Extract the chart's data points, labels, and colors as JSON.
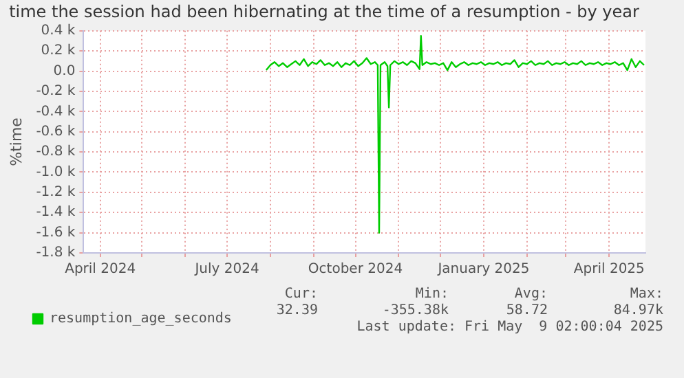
{
  "chart_data": {
    "type": "line",
    "title": "time the session had been hibernating at the time of a resumption - by year",
    "ylabel": "%time",
    "x": [
      "2024-07-29",
      "2024-08-01",
      "2024-08-04",
      "2024-08-07",
      "2024-08-10",
      "2024-08-13",
      "2024-08-16",
      "2024-08-19",
      "2024-08-22",
      "2024-08-25",
      "2024-08-28",
      "2024-08-31",
      "2024-09-03",
      "2024-09-06",
      "2024-09-09",
      "2024-09-12",
      "2024-09-15",
      "2024-09-18",
      "2024-09-21",
      "2024-09-24",
      "2024-09-27",
      "2024-09-30",
      "2024-10-03",
      "2024-10-06",
      "2024-10-09",
      "2024-10-12",
      "2024-10-15",
      "2024-10-17",
      "2024-10-18",
      "2024-10-19",
      "2024-10-22",
      "2024-10-24",
      "2024-10-25",
      "2024-10-26",
      "2024-10-29",
      "2024-11-01",
      "2024-11-04",
      "2024-11-07",
      "2024-11-10",
      "2024-11-13",
      "2024-11-16",
      "2024-11-17",
      "2024-11-18",
      "2024-11-21",
      "2024-11-24",
      "2024-11-27",
      "2024-11-30",
      "2024-12-03",
      "2024-12-06",
      "2024-12-09",
      "2024-12-12",
      "2024-12-15",
      "2024-12-18",
      "2024-12-21",
      "2024-12-24",
      "2024-12-27",
      "2024-12-30",
      "2025-01-02",
      "2025-01-05",
      "2025-01-08",
      "2025-01-11",
      "2025-01-14",
      "2025-01-17",
      "2025-01-20",
      "2025-01-23",
      "2025-01-26",
      "2025-01-29",
      "2025-02-01",
      "2025-02-04",
      "2025-02-07",
      "2025-02-10",
      "2025-02-13",
      "2025-02-16",
      "2025-02-19",
      "2025-02-22",
      "2025-02-25",
      "2025-02-28",
      "2025-03-03",
      "2025-03-06",
      "2025-03-09",
      "2025-03-12",
      "2025-03-15",
      "2025-03-18",
      "2025-03-21",
      "2025-03-24",
      "2025-03-27",
      "2025-03-30",
      "2025-04-02",
      "2025-04-05",
      "2025-04-08",
      "2025-04-11",
      "2025-04-14",
      "2025-04-17",
      "2025-04-20",
      "2025-04-23",
      "2025-04-26"
    ],
    "series": [
      {
        "name": "resumption_age_seconds",
        "color": "#00cc00",
        "values": [
          10,
          60,
          90,
          50,
          80,
          40,
          70,
          100,
          60,
          120,
          50,
          90,
          70,
          110,
          60,
          80,
          50,
          90,
          40,
          80,
          60,
          100,
          50,
          80,
          130,
          70,
          90,
          60,
          -1600,
          60,
          90,
          50,
          -360,
          60,
          100,
          70,
          90,
          60,
          100,
          80,
          20,
          350,
          60,
          90,
          70,
          80,
          60,
          80,
          10,
          90,
          40,
          70,
          90,
          60,
          80,
          70,
          90,
          60,
          80,
          70,
          90,
          60,
          80,
          70,
          110,
          40,
          80,
          70,
          100,
          60,
          80,
          70,
          100,
          60,
          80,
          70,
          90,
          60,
          80,
          70,
          100,
          60,
          80,
          70,
          90,
          60,
          80,
          70,
          90,
          60,
          80,
          10,
          120,
          40,
          100,
          60
        ]
      }
    ],
    "xlim": [
      "2024-03-20",
      "2025-04-27"
    ],
    "xticks": [
      {
        "value": "2024-04-01",
        "label": "April 2024"
      },
      {
        "value": "2024-05-01",
        "label": null
      },
      {
        "value": "2024-06-01",
        "label": null
      },
      {
        "value": "2024-07-01",
        "label": "July 2024"
      },
      {
        "value": "2024-08-01",
        "label": null
      },
      {
        "value": "2024-09-01",
        "label": null
      },
      {
        "value": "2024-10-01",
        "label": "October 2024"
      },
      {
        "value": "2024-11-01",
        "label": null
      },
      {
        "value": "2024-12-01",
        "label": null
      },
      {
        "value": "2025-01-01",
        "label": "January 2025"
      },
      {
        "value": "2025-02-01",
        "label": null
      },
      {
        "value": "2025-03-01",
        "label": null
      },
      {
        "value": "2025-04-01",
        "label": "April 2025"
      }
    ],
    "ylim": [
      -1800,
      400
    ],
    "yticks": [
      {
        "value": -1800,
        "label": "-1.8 k"
      },
      {
        "value": -1600,
        "label": "-1.6 k"
      },
      {
        "value": -1400,
        "label": "-1.4 k"
      },
      {
        "value": -1200,
        "label": "-1.2 k"
      },
      {
        "value": -1000,
        "label": "-1.0 k"
      },
      {
        "value": -800,
        "label": "-0.8 k"
      },
      {
        "value": -600,
        "label": "-0.6 k"
      },
      {
        "value": -400,
        "label": "-0.4 k"
      },
      {
        "value": -200,
        "label": "-0.2 k"
      },
      {
        "value": 0,
        "label": "0.0"
      },
      {
        "value": 200,
        "label": "0.2 k"
      },
      {
        "value": 400,
        "label": "0.4 k"
      }
    ],
    "grid": true,
    "legend": "bottom left",
    "marker": "none",
    "line_style": "solid",
    "annotations": [
      "Cur:",
      "Min:",
      "Avg:",
      "Max:",
      "32.39",
      "-355.38k",
      "58.72",
      "84.97k",
      "Last update: Fri May  9 02:00:04 2025"
    ]
  }
}
